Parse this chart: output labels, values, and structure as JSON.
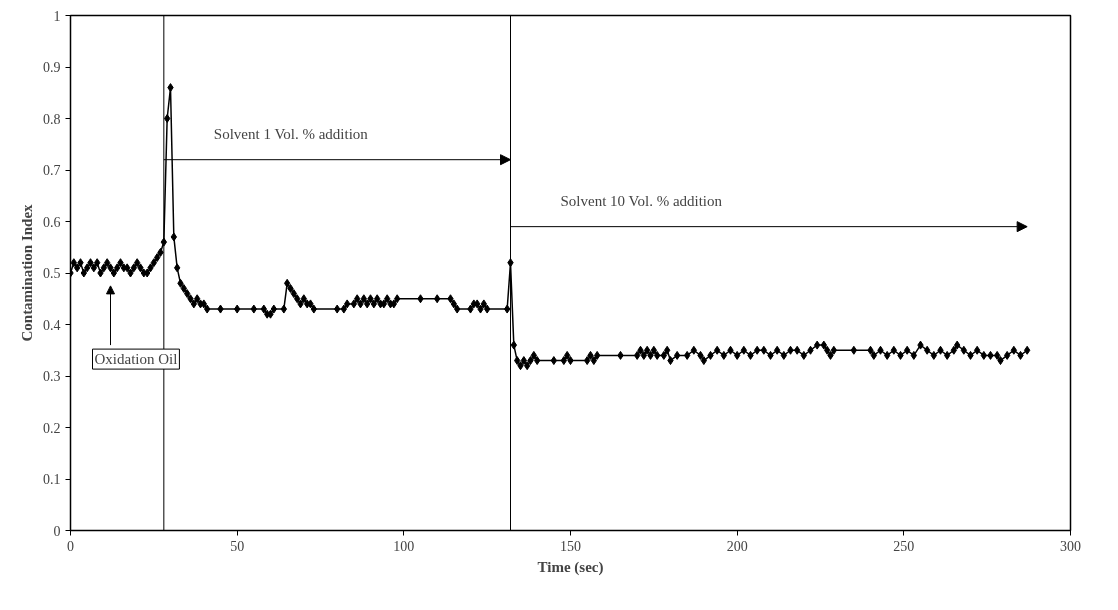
{
  "chart_data": {
    "type": "line",
    "xlabel": "Time (sec)",
    "ylabel": "Contamination Index",
    "x": [
      0,
      1,
      2,
      3,
      4,
      5,
      6,
      7,
      8,
      9,
      10,
      11,
      12,
      13,
      14,
      15,
      16,
      17,
      18,
      19,
      20,
      21,
      22,
      23,
      24,
      25,
      26,
      27,
      28,
      29,
      30,
      31,
      32,
      33,
      34,
      35,
      36,
      37,
      38,
      39,
      40,
      41,
      45,
      50,
      55,
      58,
      59,
      60,
      61,
      64,
      65,
      66,
      67,
      68,
      69,
      70,
      71,
      72,
      73,
      80,
      82,
      83,
      85,
      86,
      87,
      88,
      89,
      90,
      91,
      92,
      93,
      94,
      95,
      96,
      97,
      98,
      105,
      110,
      114,
      115,
      116,
      120,
      121,
      122,
      123,
      124,
      125,
      131,
      132,
      133,
      134,
      135,
      136,
      137,
      138,
      139,
      140,
      145,
      148,
      149,
      150,
      155,
      156,
      157,
      158,
      165,
      170,
      171,
      172,
      173,
      174,
      175,
      176,
      178,
      179,
      180,
      182,
      185,
      187,
      189,
      190,
      192,
      194,
      196,
      198,
      200,
      202,
      204,
      206,
      208,
      210,
      212,
      214,
      216,
      218,
      220,
      222,
      224,
      226,
      227,
      228,
      229,
      235,
      240,
      241,
      243,
      245,
      247,
      249,
      251,
      253,
      255,
      257,
      259,
      261,
      263,
      265,
      266,
      268,
      270,
      272,
      274,
      276,
      278,
      279,
      281,
      283,
      285,
      287
    ],
    "series": [
      {
        "color": "#000000",
        "values": [
          0.5,
          0.52,
          0.51,
          0.52,
          0.5,
          0.51,
          0.52,
          0.51,
          0.52,
          0.5,
          0.51,
          0.52,
          0.51,
          0.5,
          0.51,
          0.52,
          0.51,
          0.51,
          0.5,
          0.51,
          0.52,
          0.51,
          0.5,
          0.5,
          0.51,
          0.52,
          0.53,
          0.54,
          0.56,
          0.8,
          0.86,
          0.57,
          0.51,
          0.48,
          0.47,
          0.46,
          0.45,
          0.44,
          0.45,
          0.44,
          0.44,
          0.43,
          0.43,
          0.43,
          0.43,
          0.43,
          0.42,
          0.42,
          0.43,
          0.43,
          0.48,
          0.47,
          0.46,
          0.45,
          0.44,
          0.45,
          0.44,
          0.44,
          0.43,
          0.43,
          0.43,
          0.44,
          0.44,
          0.45,
          0.44,
          0.45,
          0.44,
          0.45,
          0.44,
          0.45,
          0.44,
          0.44,
          0.45,
          0.44,
          0.44,
          0.45,
          0.45,
          0.45,
          0.45,
          0.44,
          0.43,
          0.43,
          0.44,
          0.44,
          0.43,
          0.44,
          0.43,
          0.43,
          0.52,
          0.36,
          0.33,
          0.32,
          0.33,
          0.32,
          0.33,
          0.34,
          0.33,
          0.33,
          0.33,
          0.34,
          0.33,
          0.33,
          0.34,
          0.33,
          0.34,
          0.34,
          0.34,
          0.35,
          0.34,
          0.35,
          0.34,
          0.35,
          0.34,
          0.34,
          0.35,
          0.33,
          0.34,
          0.34,
          0.35,
          0.34,
          0.33,
          0.34,
          0.35,
          0.34,
          0.35,
          0.34,
          0.35,
          0.34,
          0.35,
          0.35,
          0.34,
          0.35,
          0.34,
          0.35,
          0.35,
          0.34,
          0.35,
          0.36,
          0.36,
          0.35,
          0.34,
          0.35,
          0.35,
          0.35,
          0.34,
          0.35,
          0.34,
          0.35,
          0.34,
          0.35,
          0.34,
          0.36,
          0.35,
          0.34,
          0.35,
          0.34,
          0.35,
          0.36,
          0.35,
          0.34,
          0.35,
          0.34,
          0.34,
          0.34,
          0.33,
          0.34,
          0.35,
          0.34,
          0.35
        ]
      }
    ],
    "xlim": [
      0,
      300
    ],
    "ylim": [
      0,
      1
    ],
    "xticks": [
      0,
      50,
      100,
      150,
      200,
      250,
      300
    ],
    "yticks": [
      0,
      0.1,
      0.2,
      0.3,
      0.4,
      0.5,
      0.6,
      0.7,
      0.8,
      0.9,
      1
    ],
    "ref_lines": [
      {
        "axis": "x",
        "value": 28,
        "color": "#000000",
        "line_style": "solid"
      },
      {
        "axis": "x",
        "value": 132,
        "color": "#000000",
        "line_style": "solid"
      }
    ],
    "annotations": [
      "Oxidation Oil",
      "Solvent 1 Vol. % addition",
      "Solvent 10 Vol. % addition"
    ],
    "marker": "diamond",
    "line_style": "solid",
    "grid": false
  }
}
